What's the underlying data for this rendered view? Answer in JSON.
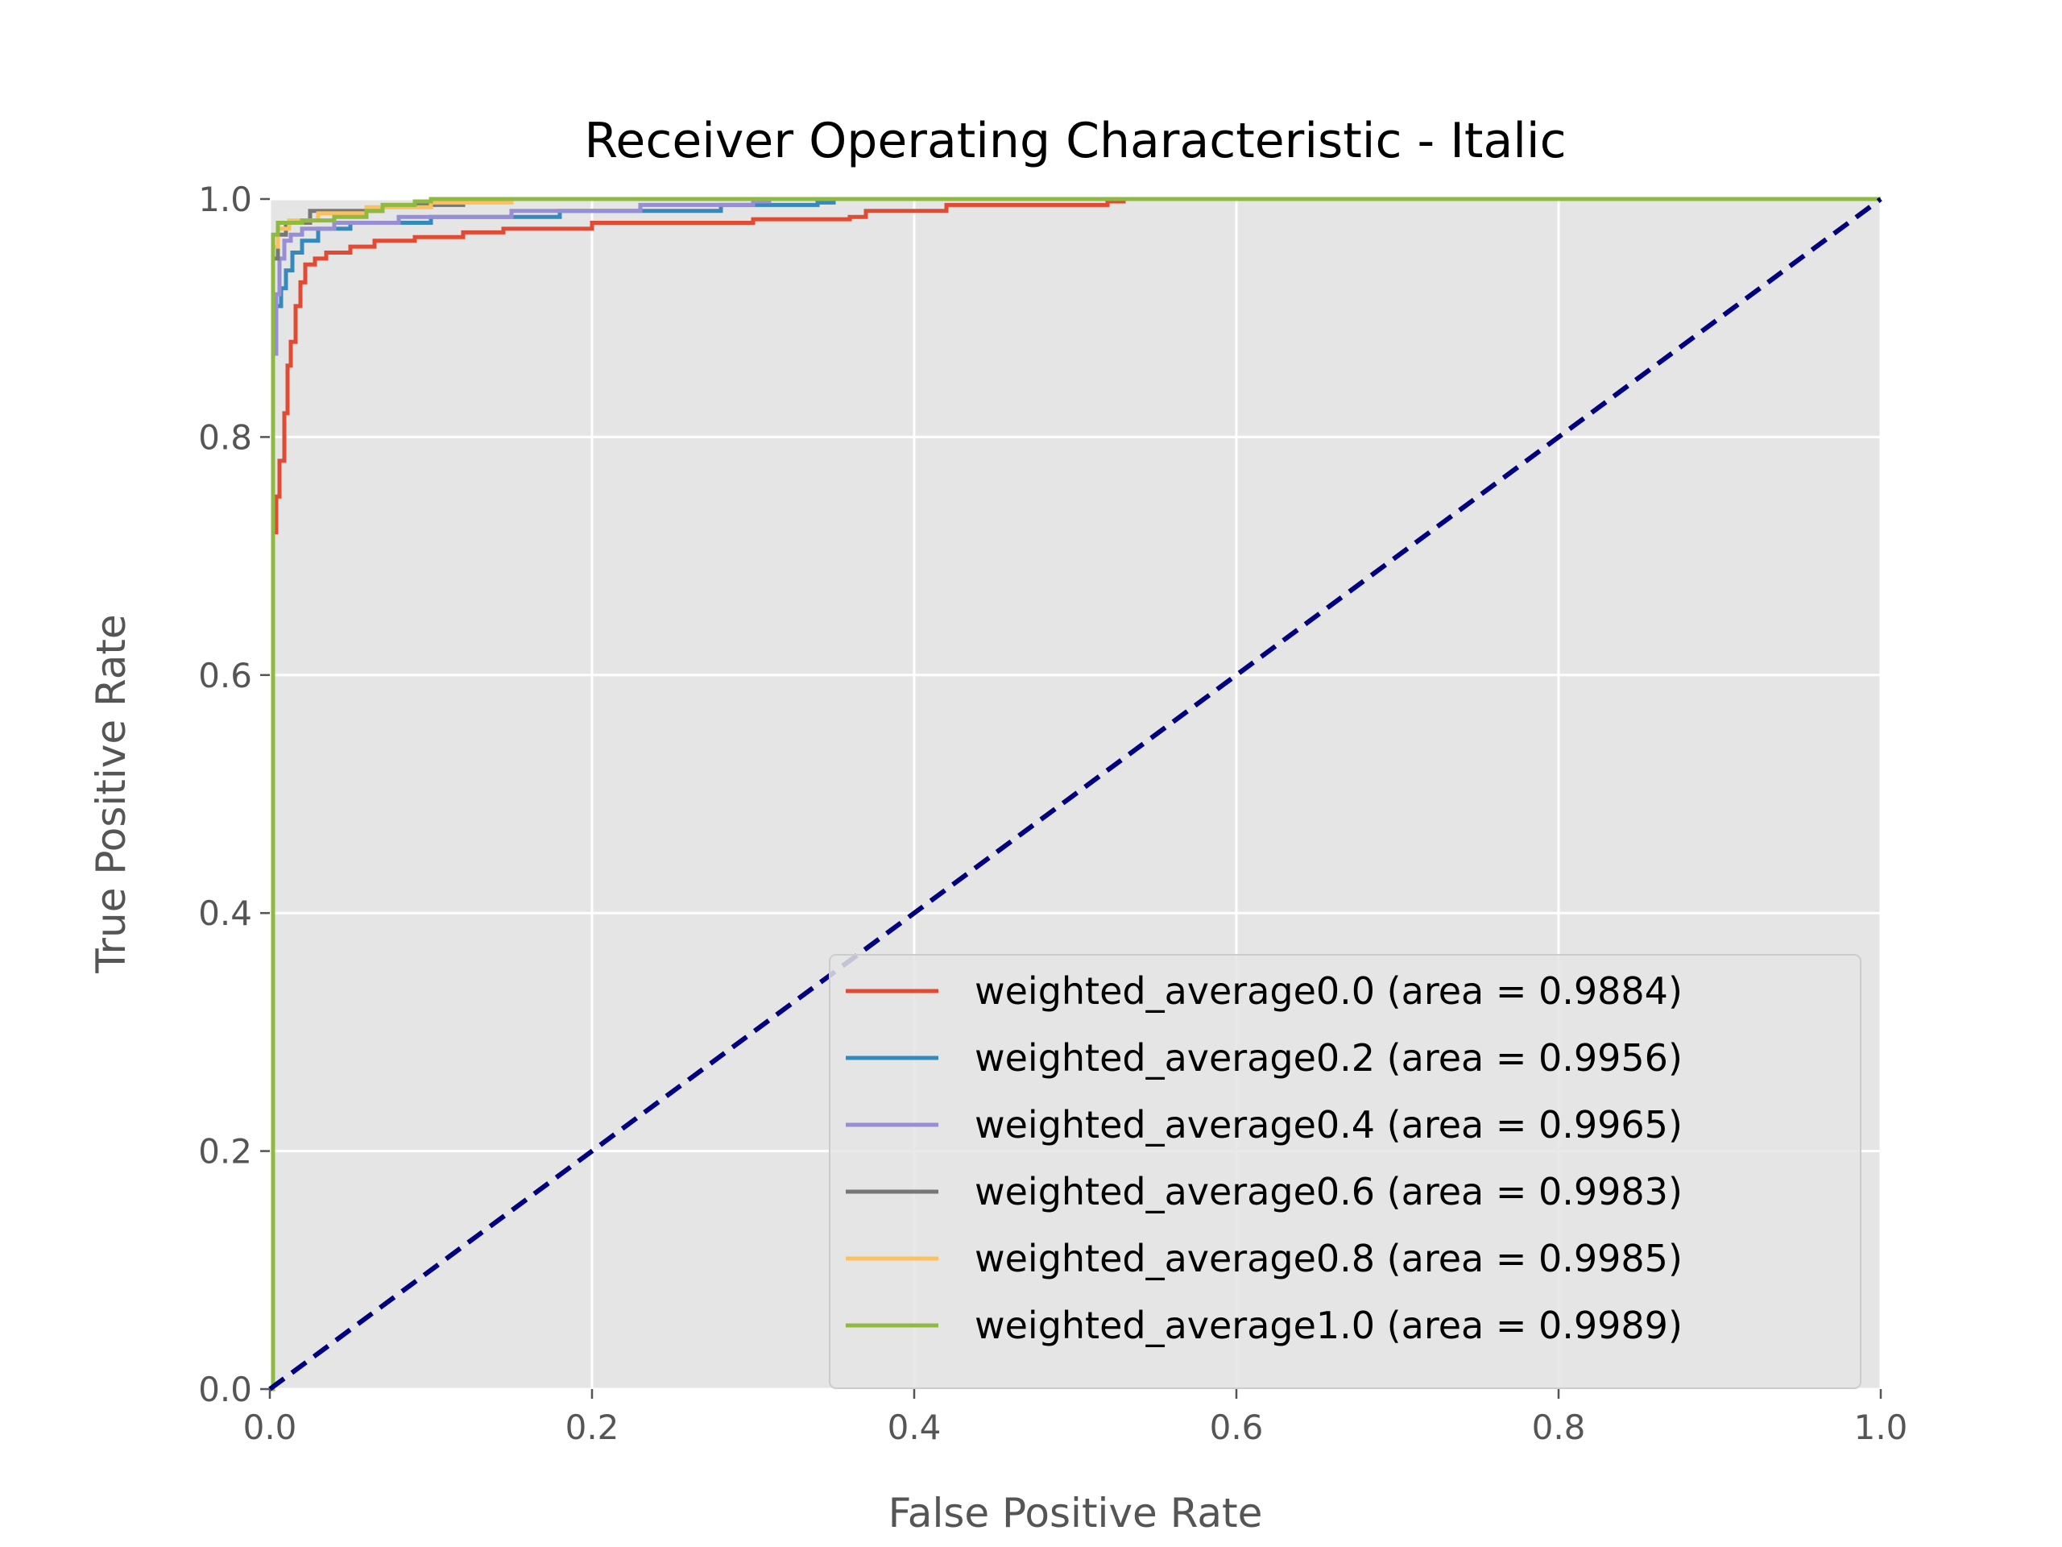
{
  "chart_data": {
    "type": "line",
    "title": "Receiver Operating Characteristic - Italic",
    "xlabel": "False Positive Rate",
    "ylabel": "True Positive Rate",
    "xlim": [
      0.0,
      1.0
    ],
    "ylim": [
      0.0,
      1.0
    ],
    "x_ticks": [
      "0.0",
      "0.2",
      "0.4",
      "0.6",
      "0.8",
      "1.0"
    ],
    "y_ticks": [
      "0.0",
      "0.2",
      "0.4",
      "0.6",
      "0.8",
      "1.0"
    ],
    "grid": true,
    "legend_position": "lower-right",
    "background_color": "#e5e5e5",
    "series": [
      {
        "name": "weighted_average0.0 (area = 0.9884)",
        "color": "#e24a33",
        "points": [
          [
            0,
            0
          ],
          [
            0.002,
            0.72
          ],
          [
            0.004,
            0.75
          ],
          [
            0.006,
            0.78
          ],
          [
            0.009,
            0.82
          ],
          [
            0.011,
            0.86
          ],
          [
            0.013,
            0.88
          ],
          [
            0.016,
            0.91
          ],
          [
            0.019,
            0.93
          ],
          [
            0.022,
            0.945
          ],
          [
            0.028,
            0.95
          ],
          [
            0.035,
            0.955
          ],
          [
            0.05,
            0.96
          ],
          [
            0.065,
            0.965
          ],
          [
            0.09,
            0.968
          ],
          [
            0.12,
            0.972
          ],
          [
            0.145,
            0.975
          ],
          [
            0.2,
            0.98
          ],
          [
            0.3,
            0.983
          ],
          [
            0.36,
            0.985
          ],
          [
            0.37,
            0.99
          ],
          [
            0.42,
            0.995
          ],
          [
            0.52,
            0.998
          ],
          [
            0.53,
            1.0
          ],
          [
            1.0,
            1.0
          ]
        ]
      },
      {
        "name": "weighted_average0.2 (area = 0.9956)",
        "color": "#348abd",
        "points": [
          [
            0,
            0
          ],
          [
            0.002,
            0.88
          ],
          [
            0.004,
            0.91
          ],
          [
            0.007,
            0.925
          ],
          [
            0.01,
            0.94
          ],
          [
            0.014,
            0.955
          ],
          [
            0.02,
            0.965
          ],
          [
            0.03,
            0.975
          ],
          [
            0.05,
            0.98
          ],
          [
            0.1,
            0.985
          ],
          [
            0.18,
            0.99
          ],
          [
            0.28,
            0.995
          ],
          [
            0.34,
            0.997
          ],
          [
            0.35,
            1.0
          ],
          [
            1.0,
            1.0
          ]
        ]
      },
      {
        "name": "weighted_average0.4 (area = 0.9965)",
        "color": "#988ed5",
        "points": [
          [
            0,
            0
          ],
          [
            0.002,
            0.87
          ],
          [
            0.004,
            0.92
          ],
          [
            0.006,
            0.95
          ],
          [
            0.009,
            0.965
          ],
          [
            0.013,
            0.97
          ],
          [
            0.02,
            0.975
          ],
          [
            0.04,
            0.98
          ],
          [
            0.08,
            0.985
          ],
          [
            0.15,
            0.99
          ],
          [
            0.23,
            0.995
          ],
          [
            0.3,
            0.998
          ],
          [
            0.31,
            1.0
          ],
          [
            1.0,
            1.0
          ]
        ]
      },
      {
        "name": "weighted_average0.6 (area = 0.9983)",
        "color": "#777777",
        "points": [
          [
            0,
            0
          ],
          [
            0.002,
            0.95
          ],
          [
            0.005,
            0.97
          ],
          [
            0.01,
            0.98
          ],
          [
            0.025,
            0.99
          ],
          [
            0.07,
            0.995
          ],
          [
            0.12,
            0.998
          ],
          [
            0.13,
            1.0
          ],
          [
            1.0,
            1.0
          ]
        ]
      },
      {
        "name": "weighted_average0.8 (area = 0.9985)",
        "color": "#fbc15e",
        "points": [
          [
            0,
            0
          ],
          [
            0.002,
            0.96
          ],
          [
            0.005,
            0.975
          ],
          [
            0.012,
            0.982
          ],
          [
            0.03,
            0.988
          ],
          [
            0.06,
            0.993
          ],
          [
            0.1,
            0.997
          ],
          [
            0.15,
            1.0
          ],
          [
            1.0,
            1.0
          ]
        ]
      },
      {
        "name": "weighted_average1.0 (area = 0.9989)",
        "color": "#8eba42",
        "points": [
          [
            0,
            0
          ],
          [
            0.002,
            0.97
          ],
          [
            0.005,
            0.98
          ],
          [
            0.02,
            0.982
          ],
          [
            0.04,
            0.985
          ],
          [
            0.06,
            0.99
          ],
          [
            0.07,
            0.995
          ],
          [
            0.09,
            0.998
          ],
          [
            0.1,
            1.0
          ],
          [
            1.0,
            1.0
          ]
        ]
      }
    ],
    "diagonal": {
      "points": [
        [
          0,
          0
        ],
        [
          1,
          1
        ]
      ],
      "color": "#000080",
      "style": "dashed"
    }
  }
}
